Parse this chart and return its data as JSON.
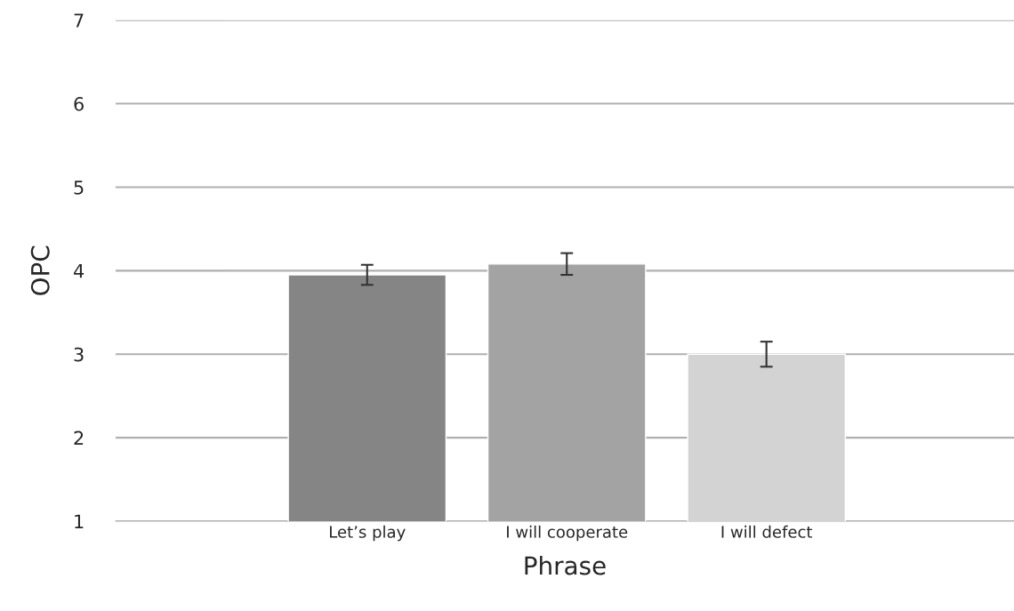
{
  "chart_data": {
    "type": "bar",
    "xlabel": "Phrase",
    "ylabel": "OPC",
    "categories": [
      "Let’s play",
      "I will cooperate",
      "I will defect"
    ],
    "values": [
      3.95,
      4.08,
      3.0
    ],
    "colors": [
      "#858585",
      "#a3a3a3",
      "#d3d3d3"
    ],
    "errors": [
      0.12,
      0.13,
      0.15
    ],
    "ylim": [
      1,
      7
    ],
    "yticks": [
      1,
      2,
      3,
      4,
      5,
      6,
      7
    ],
    "grid": "y"
  }
}
